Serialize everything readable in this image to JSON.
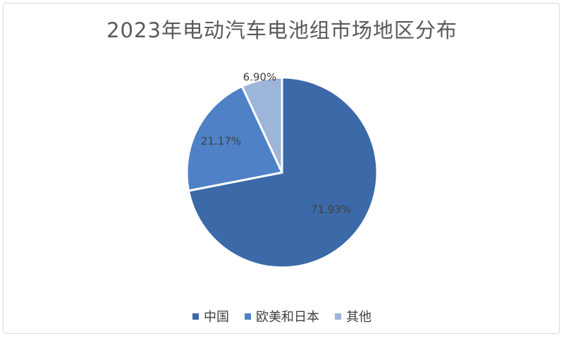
{
  "chart_data": {
    "type": "pie",
    "title": "2023年电动汽车电池组市场地区分布",
    "slices": [
      {
        "label": "中国",
        "value": 71.93,
        "value_label": "71.93%",
        "color": "#3c6aa9"
      },
      {
        "label": "欧美和日本",
        "value": 21.17,
        "value_label": "21.17%",
        "color": "#4f81c7"
      },
      {
        "label": "其他",
        "value": 6.9,
        "value_label": "6.90%",
        "color": "#9db5d9"
      }
    ],
    "legend_position": "bottom",
    "start_angle": "top",
    "direction": "clockwise"
  }
}
